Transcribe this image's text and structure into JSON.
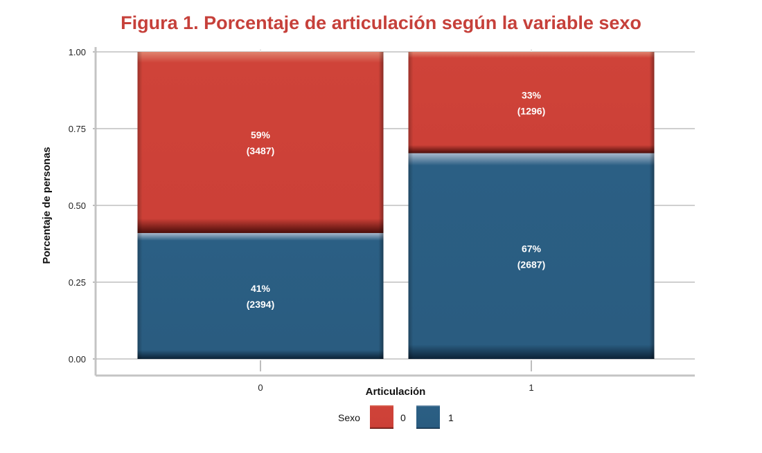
{
  "chart_data": {
    "type": "bar",
    "stacked": true,
    "title": "Figura 1. Porcentaje de articulación según la variable sexo",
    "xlabel": "Articulación",
    "ylabel": "Porcentaje de personas",
    "categories": [
      "0",
      "1"
    ],
    "ylim": [
      0,
      1
    ],
    "yticks": [
      "0.00",
      "0.25",
      "0.50",
      "0.75",
      "1.00"
    ],
    "grid": true,
    "legend": {
      "title": "Sexo",
      "position": "bottom"
    },
    "series": [
      {
        "name": "1",
        "color": "#2b5f84",
        "values": [
          0.41,
          0.67
        ],
        "labels": [
          "41%",
          "67%"
        ],
        "counts": [
          "(2394)",
          "(2687)"
        ]
      },
      {
        "name": "0",
        "color": "#cf4339",
        "values": [
          0.59,
          0.33
        ],
        "labels": [
          "59%",
          "33%"
        ],
        "counts": [
          "(3487)",
          "(1296)"
        ]
      }
    ]
  }
}
